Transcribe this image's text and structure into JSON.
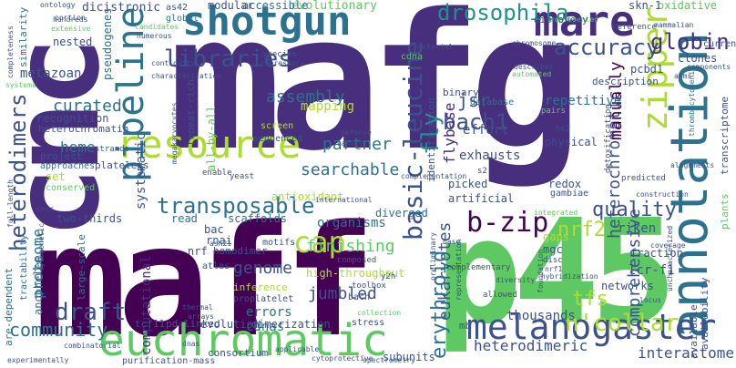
{
  "palette": {
    "background": "#ffffff",
    "dark_purple": "#440154",
    "indigo": "#472f7d",
    "slate_blue": "#3b528b",
    "blue": "#2c728e",
    "teal": "#21918c",
    "green_teal": "#28ae80",
    "green": "#5ec962",
    "lime": "#addc30",
    "yellow": "#fde725"
  },
  "words": {
    "mafg": "mafg",
    "maff": "maff",
    "p45": "p45",
    "cnc": "cnc",
    "annotation": "annotation",
    "euchromatic": "euchromatic",
    "melanogaster": "melanogaster",
    "shotgun": "shotgun",
    "mare": "mare",
    "resource": "resource",
    "pipeline": "pipeline",
    "zipper": "zipper",
    "heterodimers": "heterodimers",
    "libraries": "libraries",
    "transposable": "transposable",
    "basic_leucine": "basic-leucine",
    "drosophila": "drosophila",
    "accuracy": "accuracy",
    "globin": "globin",
    "draft": "draft",
    "cap": "cap",
    "b_zip": "b-zip",
    "bach1": "bach1",
    "n_collar": "n'collar",
    "heterochromatic": "heterochromatic",
    "manually": "manually",
    "quality": "quality",
    "nrf2": "nrf2",
    "fly": "fly",
    "comprehensive": "comprehensive",
    "community": "community",
    "finishing": "finishing",
    "genome": "genome",
    "proteome": "proteome",
    "jumbled": "jumbled",
    "eukaryotes": "eukaryotes",
    "erythroid": "erythroid",
    "interactome": "interactome",
    "heterodimeric": "heterodimeric",
    "tfs": "tfs",
    "thousands": "thousands",
    "curated": "curated",
    "assembly": "assembly",
    "partner": "partner",
    "searchable": "searchable",
    "computational": "computational",
    "flybase": "flybase",
    "jsr": "jsr",
    "heme": "heme",
    "lcr_f1": "lcr-f1",
    "repetitive": "repetitive",
    "metazoan": "metazoan",
    "systematic": "systematic",
    "errors": "errors",
    "cdnas": "cdnas",
    "organisms": "organisms",
    "mapping": "mapping",
    "riken": "riken",
    "all_by_all": "all-by-all",
    "nested": "nested",
    "pseudogenes": "pseudogenes",
    "dicistronic": "dicistronic",
    "modular": "modular",
    "evolutionary": "evolutionary",
    "accessible": "accessible",
    "antioxidant": "antioxidant",
    "exhausts": "exhausts",
    "effort": "effort",
    "identification": "identification",
    "binary": "binary",
    "description": "description",
    "pcbd1": "pcbd1",
    "clones": "clones",
    "skn_1": "skn-1",
    "oxidative": "oxidative",
    "recognition": "recognition",
    "heterochromatin": "heterochromatin",
    "platelets": "platelets",
    "repeat_rich": "repeat-rich",
    "scaffolds": "scaffolds",
    "read": "read",
    "two_thirds": "two-thirds",
    "bac": "bac",
    "rnai": "rnai",
    "homodimer": "homodimer",
    "nrf": "nrf",
    "motifs": "motifs",
    "high_throughput": "high-throughput",
    "diverged": "diverged",
    "artificial": "artificial",
    "picked": "picked",
    "redox": "redox",
    "gaps": "gaps",
    "mgc": "mgc",
    "fraction": "fraction",
    "networks": "networks",
    "tcf11": "tcf11",
    "pd_linked": "pd-linked",
    "evolution": "evolution",
    "dimerization": "dimerization",
    "consortium": "consortium",
    "subunits": "subunits",
    "mb": "mb",
    "purification_mass": "purification-mass",
    "anopheles": "anopheles",
    "large_scale": "large-scale",
    "are_dependent": "are-dependent",
    "tractability": "tractability",
    "inference": "inference",
    "proplatelet": "proplatelet",
    "atlas": "atlas",
    "physical": "physical",
    "available": "available",
    "availability": "availability",
    "plants": "plants",
    "transcriptome": "transcriptome",
    "current": "current",
    "set": "set",
    "conserved": "conserved",
    "project": "project",
    "approaches": "approaches",
    "strands": "strands",
    "enable": "enable",
    "yeast": "yeast",
    "screen": "screen",
    "sequenced": "sequenced",
    "global": "global",
    "as42": "as42",
    "candidates": "candidates",
    "numerous": "numerous",
    "hundreds": "hundreds",
    "extensive": "extensive",
    "ontology": "ontology",
    "completeness": "completeness",
    "similarity": "similarity",
    "systems": "systems",
    "mammalian": "mammalian",
    "reference": "reference",
    "represented": "represented",
    "components": "components",
    "thrombocytopenia": "thrombocytopenia",
    "chromosome": "chromosome",
    "bacterial": "bacterial",
    "contiguity": "contiguity",
    "characterization": "characterization",
    "species": "species",
    "repressors": "repressors",
    "cdna": "cdna",
    "database": "database",
    "describes": "describes",
    "automated": "automated",
    "discovery": "discovery",
    "pairs": "pairs",
    "hs2": "hs2",
    "gambiae": "gambiae",
    "s2": "s2",
    "detoxification": "detoxification",
    "predicted": "predicted",
    "construction": "construction",
    "alignments": "alignments",
    "international": "international",
    "complementation": "complementation",
    "defense": "defense",
    "uas_tf": "uas-tf",
    "integrated": "integrated",
    "allowed": "allowed",
    "hybridization": "hybridization",
    "disc": "disc",
    "nrf1": "nrf1",
    "y2h": "y2h",
    "composed": "composed",
    "complementary": "complementary",
    "coverage": "coverage",
    "uncharacterized": "uncharacterized",
    "locus": "locus",
    "bach": "bach",
    "stress": "stress",
    "collection": "collection",
    "combinatorial": "combinatorial",
    "thermal": "thermal",
    "arrays": "arrays",
    "experimentally": "experimentally",
    "full_length": "full-length",
    "cytogenetic": "cytogenetic",
    "portion": "portion",
    "cncc": "cncc",
    "dnas": "dnas",
    "applicable": "applicable",
    "cytoprotective": "cytoprotective",
    "spectrometry": "spectrometry",
    "diversity": "diversity",
    "preliminary": "preliminary",
    "representation": "representation",
    "foundation": "foundation",
    "base": "base",
    "ash21": "ash21",
    "toolbox": "toolbox",
    "arms": "arms",
    "megakaryocytes": "megakaryocytes"
  }
}
